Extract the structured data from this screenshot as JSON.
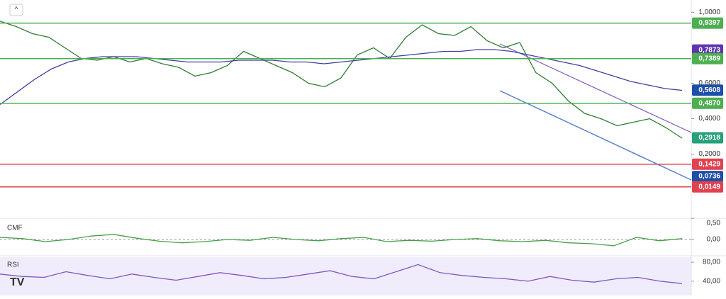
{
  "chart_data": [
    {
      "type": "line",
      "ylim": [
        -0.13,
        1.07
      ],
      "yticks": [
        {
          "value": 1,
          "label": "1,0000"
        },
        {
          "value": 0.6,
          "label": "0,6000"
        },
        {
          "value": 0.4,
          "label": "0,4000"
        },
        {
          "value": 0.2,
          "label": "0,2000"
        }
      ],
      "series": [
        {
          "color": "#2e7d32",
          "values": [
            0.95,
            0.92,
            0.88,
            0.86,
            0.8,
            0.74,
            0.73,
            0.75,
            0.72,
            0.74,
            0.71,
            0.69,
            0.64,
            0.66,
            0.7,
            0.78,
            0.74,
            0.7,
            0.66,
            0.6,
            0.58,
            0.63,
            0.76,
            0.8,
            0.74,
            0.86,
            0.93,
            0.88,
            0.87,
            0.92,
            0.84,
            0.8,
            0.83,
            0.66,
            0.6,
            0.5,
            0.43,
            0.4,
            0.36,
            0.38,
            0.4,
            0.35,
            0.29
          ]
        },
        {
          "color": "#3f3f9f",
          "values": [
            0.48,
            0.55,
            0.62,
            0.68,
            0.72,
            0.74,
            0.75,
            0.75,
            0.75,
            0.74,
            0.73,
            0.72,
            0.72,
            0.72,
            0.73,
            0.73,
            0.73,
            0.72,
            0.72,
            0.71,
            0.72,
            0.73,
            0.74,
            0.75,
            0.76,
            0.77,
            0.78,
            0.78,
            0.79,
            0.79,
            0.78,
            0.76,
            0.74,
            0.72,
            0.7,
            0.67,
            0.64,
            0.61,
            0.59,
            0.57,
            0.56
          ]
        }
      ],
      "levels": [
        {
          "value": 0.9397,
          "label": "0,9397",
          "color": "#4caf50",
          "line": true
        },
        {
          "value": 0.7873,
          "label": "0,7873",
          "color": "#5e35b1",
          "line": false
        },
        {
          "value": 0.7389,
          "label": "0,7389",
          "color": "#4caf50",
          "line": true
        },
        {
          "value": 0.5608,
          "label": "0,5608",
          "color": "#1e4fa8",
          "line": false
        },
        {
          "value": 0.487,
          "label": "0,4870",
          "color": "#4caf50",
          "line": true
        },
        {
          "value": 0.2918,
          "label": "0,2918",
          "color": "#26a17b",
          "line": false
        },
        {
          "value": 0.1429,
          "label": "0,1429",
          "color": "#e0424f",
          "line": true
        },
        {
          "value": 0.0736,
          "label": "0,0736",
          "color": "#1e4fa8",
          "line": false
        },
        {
          "value": 0.0149,
          "label": "0,0149",
          "color": "#e0424f",
          "line": true
        }
      ]
    },
    {
      "type": "line",
      "title": "CMF",
      "ylim": [
        -0.37,
        0.47
      ],
      "yticks": [
        {
          "value": 0.5,
          "label": "0,50"
        },
        {
          "value": 0,
          "label": "0,00"
        }
      ],
      "series": [
        {
          "color": "#43a047",
          "values": [
            0.05,
            0.02,
            -0.05,
            0.0,
            0.08,
            0.12,
            0.03,
            -0.04,
            -0.08,
            -0.05,
            0.0,
            -0.02,
            0.05,
            0.0,
            -0.03,
            0.02,
            0.05,
            -0.05,
            -0.02,
            -0.04,
            0.0,
            0.02,
            -0.03,
            -0.05,
            -0.02,
            -0.08,
            -0.1,
            -0.15,
            0.05,
            -0.03,
            0.02
          ]
        }
      ]
    },
    {
      "type": "line",
      "title": "RSI",
      "ylim": [
        10,
        92
      ],
      "yticks": [
        {
          "value": 80,
          "label": "80,00"
        },
        {
          "value": 40,
          "label": "40,00"
        }
      ],
      "series": [
        {
          "color": "#7e57c2",
          "values": [
            55,
            50,
            48,
            60,
            52,
            45,
            55,
            48,
            42,
            50,
            58,
            52,
            45,
            48,
            55,
            62,
            50,
            45,
            60,
            75,
            58,
            52,
            48,
            45,
            40,
            50,
            42,
            38,
            45,
            48,
            40,
            35
          ]
        }
      ]
    }
  ]
}
